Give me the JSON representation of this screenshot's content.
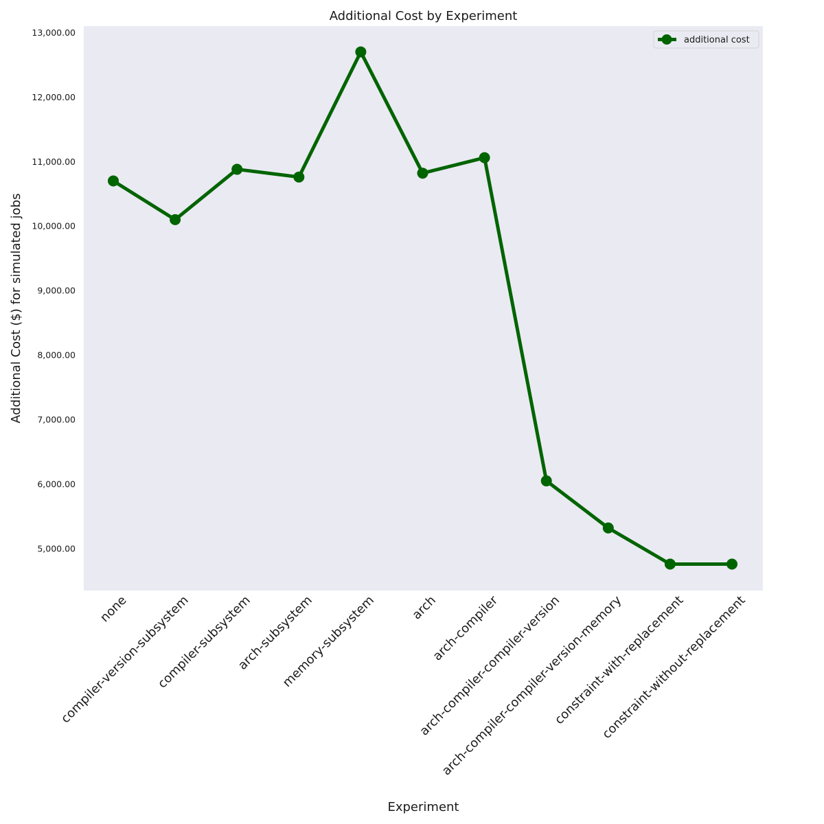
{
  "chart_data": {
    "type": "line",
    "title": "Additional Cost by Experiment",
    "xlabel": "Experiment",
    "ylabel": "Additional Cost ($) for simulated jobs",
    "categories": [
      "none",
      "compiler-version-subsystem",
      "compiler-subsystem",
      "arch-subsystem",
      "memory-subsystem",
      "arch",
      "arch-compiler",
      "arch-compiler-compiler-version",
      "arch-compiler-compiler-version-memory",
      "constraint-with-replacement",
      "constraint-without-replacement"
    ],
    "series": [
      {
        "name": "additional cost",
        "color": "#006400",
        "values": [
          10700,
          10100,
          10880,
          10760,
          12700,
          10820,
          11060,
          6050,
          5320,
          4760,
          4760
        ]
      }
    ],
    "ylim": [
      4350,
      13100
    ],
    "yticks": [
      5000,
      6000,
      7000,
      8000,
      9000,
      10000,
      11000,
      12000,
      13000
    ],
    "ytick_labels": [
      "5,000.00",
      "6,000.00",
      "7,000.00",
      "8,000.00",
      "9,000.00",
      "10,000.00",
      "11,000.00",
      "12,000.00",
      "13,000.00"
    ],
    "grid": false,
    "legend_position": "top-right",
    "background": "#eaeaf2"
  }
}
